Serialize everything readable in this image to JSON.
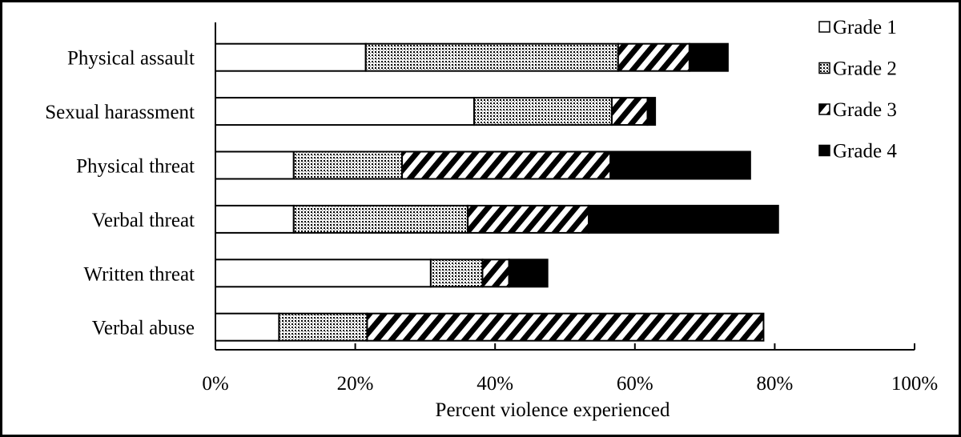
{
  "chart_data": {
    "type": "bar",
    "orientation": "horizontal",
    "stacked": true,
    "categories": [
      "Physical assault",
      "Sexual harassment",
      "Physical threat",
      "Verbal threat",
      "Written threat",
      "Verbal abuse"
    ],
    "series": [
      {
        "name": "Grade 1",
        "pattern": "white",
        "values": [
          21.5,
          37.0,
          11.2,
          11.2,
          30.8,
          9.1
        ]
      },
      {
        "name": "Grade 2",
        "pattern": "dotted",
        "values": [
          36.1,
          19.7,
          15.5,
          24.9,
          7.4,
          12.6
        ]
      },
      {
        "name": "Grade 3",
        "pattern": "diagonal-hatch",
        "values": [
          10.2,
          5.1,
          29.8,
          17.3,
          3.8,
          56.7
        ]
      },
      {
        "name": "Grade 4",
        "pattern": "black",
        "values": [
          5.5,
          1.1,
          20.0,
          27.1,
          5.5,
          0
        ]
      }
    ],
    "xlabel": "Percent violence experienced",
    "ylabel": "",
    "xlim": [
      0,
      100
    ],
    "xticks": [
      "0%",
      "20%",
      "40%",
      "60%",
      "80%",
      "100%"
    ],
    "grid": false,
    "legend": "top-right",
    "colors": {
      "fill_dark": "#000000",
      "fill_light": "#ffffff"
    }
  }
}
